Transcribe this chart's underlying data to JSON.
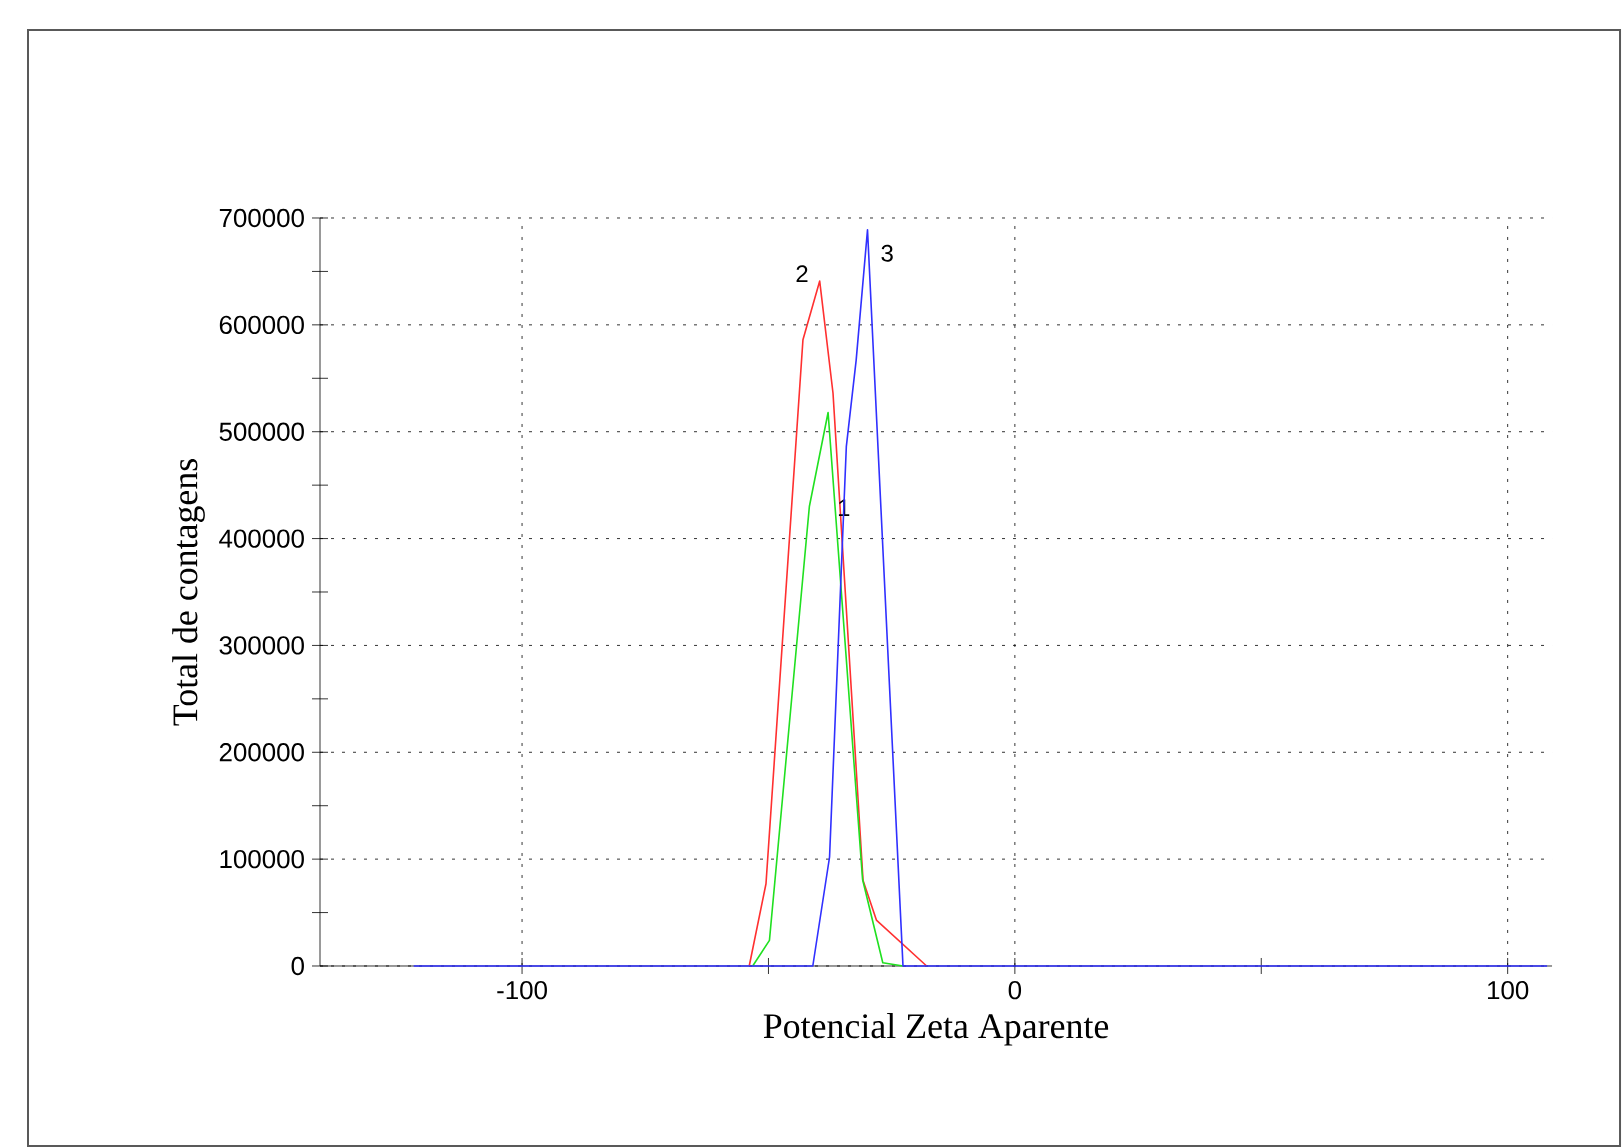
{
  "chart_data": {
    "type": "line",
    "xlabel": "Potencial Zeta Aparente",
    "ylabel": "Total de contagens",
    "xlim": [
      -141,
      109
    ],
    "ylim": [
      0,
      700000
    ],
    "xticks": [
      -100,
      {
        "value": -50,
        "label": null
      },
      0,
      {
        "value": 50,
        "label": null
      },
      100
    ],
    "yticks": [
      0,
      {
        "value": 50000,
        "label": null
      },
      100000,
      {
        "value": 150000,
        "label": null
      },
      200000,
      {
        "value": 250000,
        "label": null
      },
      300000,
      {
        "value": 350000,
        "label": null
      },
      400000,
      {
        "value": 450000,
        "label": null
      },
      500000,
      {
        "value": 550000,
        "label": null
      },
      600000,
      {
        "value": 650000,
        "label": null
      },
      700000
    ],
    "grid": true,
    "legend": false,
    "marker": "none",
    "line_style": "solid",
    "series": [
      {
        "name": "2",
        "color": "#ff3030",
        "x": [
          -53.9,
          -50.5,
          -43.0,
          -39.6,
          -36.9,
          -30.8,
          -28.1,
          -17.9
        ],
        "values": [
          0,
          77000,
          586000,
          641000,
          536000,
          80000,
          43000,
          0
        ]
      },
      {
        "name": "1",
        "color": "#20e020",
        "x": [
          -53.2,
          -49.8,
          -41.7,
          -37.9,
          -30.9,
          -26.8,
          -22.7
        ],
        "values": [
          0,
          24000,
          430000,
          518000,
          81000,
          3000,
          0
        ]
      },
      {
        "name": "3",
        "color": "#3030ff",
        "x": [
          -122,
          -41.0,
          -37.6,
          -34.2,
          -32.2,
          -29.9,
          -22.7,
          108
        ],
        "values": [
          0,
          0,
          102000,
          486000,
          567000,
          689000,
          0,
          0
        ]
      }
    ]
  }
}
